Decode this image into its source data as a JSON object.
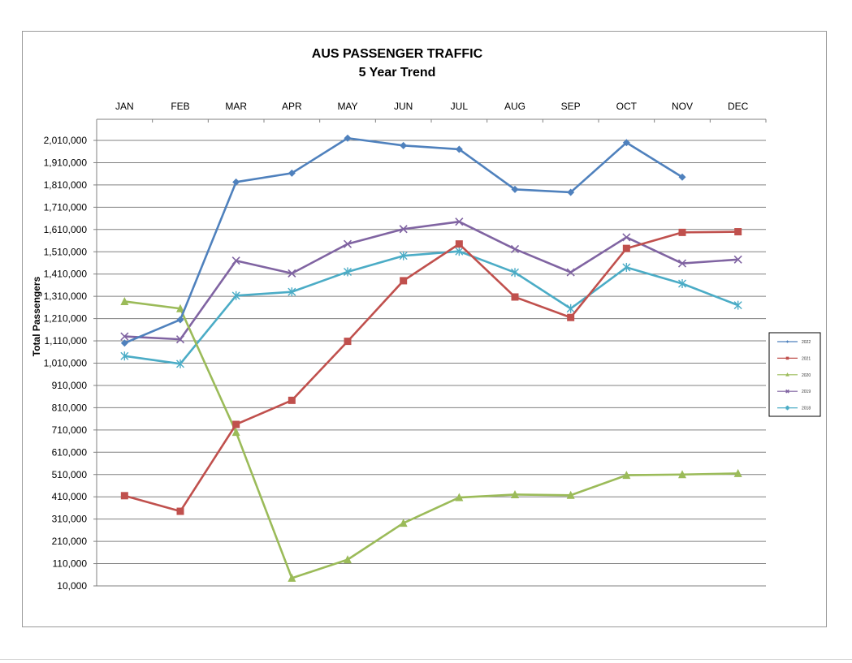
{
  "chart_data": {
    "type": "line",
    "title": "AUS PASSENGER TRAFFIC",
    "subtitle": "5 Year Trend",
    "ylabel": "Total Passengers",
    "xlabel": "",
    "categories": [
      "JAN",
      "FEB",
      "MAR",
      "APR",
      "MAY",
      "JUN",
      "JUL",
      "AUG",
      "SEP",
      "OCT",
      "NOV",
      "DEC"
    ],
    "yticks": [
      10000,
      110000,
      210000,
      310000,
      410000,
      510000,
      610000,
      710000,
      810000,
      910000,
      1010000,
      1110000,
      1210000,
      1310000,
      1410000,
      1510000,
      1610000,
      1710000,
      1810000,
      1910000,
      2010000
    ],
    "ytick_labels": [
      "10,000",
      "110,000",
      "210,000",
      "310,000",
      "410,000",
      "510,000",
      "610,000",
      "710,000",
      "810,000",
      "910,000",
      "1,010,000",
      "1,110,000",
      "1,210,000",
      "1,310,000",
      "1,410,000",
      "1,510,000",
      "1,610,000",
      "1,710,000",
      "1,810,000",
      "1,910,000",
      "2,010,000"
    ],
    "ylim": [
      10000,
      2010000
    ],
    "grid": true,
    "x_axis_position": "top",
    "legend_position": "right",
    "series": [
      {
        "name": "2022",
        "color": "#4f81bd",
        "marker": "diamond",
        "values": [
          1100000,
          1205000,
          1823000,
          1863000,
          2020000,
          1987000,
          1970000,
          1790000,
          1777000,
          2000000,
          1845000,
          null
        ]
      },
      {
        "name": "2021",
        "color": "#c0504d",
        "marker": "square",
        "values": [
          415000,
          345000,
          735000,
          843000,
          1108000,
          1380000,
          1545000,
          1307000,
          1215000,
          1525000,
          1597000,
          1600000
        ]
      },
      {
        "name": "2020",
        "color": "#9bbb59",
        "marker": "triangle",
        "values": [
          1287000,
          1255000,
          700000,
          45000,
          128000,
          292000,
          407000,
          420000,
          417000,
          507000,
          510000,
          515000
        ]
      },
      {
        "name": "2019",
        "color": "#8064a2",
        "marker": "x",
        "values": [
          1130000,
          1117000,
          1470000,
          1413000,
          1545000,
          1612000,
          1645000,
          1522000,
          1418000,
          1575000,
          1458000,
          1475000
        ]
      },
      {
        "name": "2018",
        "color": "#4bacc6",
        "marker": "star",
        "values": [
          1042000,
          1007000,
          1313000,
          1330000,
          1420000,
          1492000,
          1512000,
          1417000,
          1255000,
          1440000,
          1367000,
          1270000
        ]
      }
    ]
  }
}
